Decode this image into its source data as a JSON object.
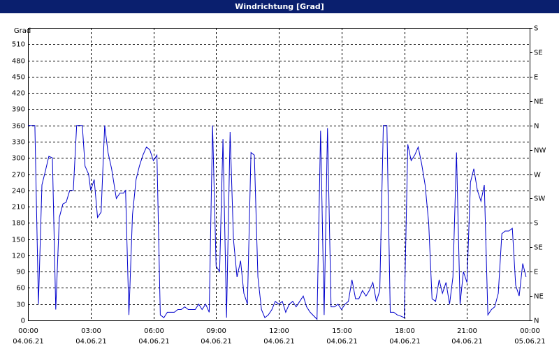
{
  "chart_data": {
    "type": "line",
    "title": "Windrichtung [Grad]",
    "y_label": "Grad",
    "x": [
      0,
      0.33,
      0.5,
      0.67,
      0.83,
      1,
      1.17,
      1.33,
      1.5,
      1.67,
      1.83,
      2,
      2.17,
      2.33,
      2.6,
      2.73,
      2.9,
      3,
      3.17,
      3.33,
      3.5,
      3.67,
      3.83,
      4,
      4.23,
      4.4,
      4.57,
      4.67,
      4.83,
      5,
      5.17,
      5.33,
      5.5,
      5.67,
      5.83,
      6,
      6.17,
      6.33,
      6.5,
      6.67,
      6.83,
      7,
      7.17,
      7.33,
      7.5,
      7.67,
      7.83,
      8,
      8.17,
      8.33,
      8.5,
      8.67,
      8.83,
      9,
      9.17,
      9.33,
      9.5,
      9.67,
      9.83,
      10,
      10.17,
      10.33,
      10.5,
      10.67,
      10.83,
      11,
      11.17,
      11.33,
      11.5,
      11.67,
      11.83,
      12,
      12.17,
      12.33,
      12.5,
      12.67,
      12.83,
      13,
      13.17,
      13.33,
      13.5,
      13.83,
      14,
      14.17,
      14.33,
      14.5,
      14.67,
      14.83,
      15,
      15.17,
      15.33,
      15.5,
      15.67,
      15.83,
      16,
      16.17,
      16.33,
      16.5,
      16.67,
      16.83,
      17,
      17.17,
      17.33,
      17.5,
      17.67,
      17.83,
      18,
      18.17,
      18.33,
      18.5,
      18.67,
      18.83,
      19,
      19.17,
      19.33,
      19.5,
      19.67,
      19.83,
      20,
      20.17,
      20.33,
      20.5,
      20.67,
      20.83,
      21,
      21.17,
      21.33,
      21.5,
      21.67,
      21.83,
      22,
      22.17,
      22.33,
      22.5,
      22.67,
      22.83,
      23,
      23.17,
      23.33,
      23.5,
      23.67,
      23.83
    ],
    "values": [
      360,
      360,
      30,
      250,
      275,
      303,
      300,
      20,
      190,
      215,
      218,
      240,
      240,
      360,
      360,
      285,
      270,
      240,
      260,
      190,
      200,
      360,
      310,
      280,
      225,
      235,
      235,
      240,
      10,
      195,
      260,
      285,
      305,
      320,
      315,
      295,
      305,
      10,
      5,
      15,
      15,
      15,
      20,
      20,
      25,
      20,
      20,
      20,
      30,
      20,
      30,
      15,
      360,
      100,
      90,
      335,
      5,
      348,
      150,
      80,
      110,
      50,
      30,
      310,
      305,
      80,
      20,
      5,
      10,
      20,
      35,
      30,
      35,
      15,
      30,
      35,
      25,
      35,
      45,
      25,
      15,
      2,
      350,
      10,
      355,
      25,
      25,
      30,
      20,
      30,
      35,
      75,
      40,
      40,
      55,
      45,
      55,
      70,
      35,
      55,
      360,
      360,
      15,
      15,
      10,
      8,
      5,
      325,
      295,
      305,
      320,
      290,
      250,
      180,
      40,
      35,
      75,
      50,
      70,
      30,
      80,
      310,
      30,
      90,
      70,
      255,
      280,
      240,
      220,
      250,
      10,
      20,
      25,
      50,
      160,
      165,
      165,
      170,
      65,
      45,
      105,
      80
    ],
    "color": "#0000cc",
    "xlim": [
      0,
      24
    ],
    "xticks": [
      {
        "value": 0,
        "label": "00:00"
      },
      {
        "value": 3,
        "label": "03:00"
      },
      {
        "value": 6,
        "label": "06:00"
      },
      {
        "value": 9,
        "label": "09:00"
      },
      {
        "value": 12,
        "label": "12:00"
      },
      {
        "value": 15,
        "label": "15:00"
      },
      {
        "value": 18,
        "label": "18:00"
      },
      {
        "value": 21,
        "label": "21:00"
      },
      {
        "value": 24,
        "label": "00:00"
      }
    ],
    "xtick_dates": [
      "04.06.21",
      "04.06.21",
      "04.06.21",
      "04.06.21",
      "04.06.21",
      "04.06.21",
      "04.06.21",
      "04.06.21",
      "05.06.21"
    ],
    "ylim": [
      0,
      540
    ],
    "yticks": [
      0,
      30,
      60,
      90,
      120,
      150,
      180,
      210,
      240,
      270,
      300,
      330,
      360,
      390,
      420,
      450,
      480,
      510
    ],
    "y2lim": [
      0,
      540
    ],
    "y2ticks": [
      {
        "value": 0,
        "label": "N"
      },
      {
        "value": 45,
        "label": "NE"
      },
      {
        "value": 90,
        "label": "E"
      },
      {
        "value": 135,
        "label": "SE"
      },
      {
        "value": 180,
        "label": "S"
      },
      {
        "value": 225,
        "label": "SW"
      },
      {
        "value": 270,
        "label": "W"
      },
      {
        "value": 315,
        "label": "NW"
      },
      {
        "value": 360,
        "label": "N"
      },
      {
        "value": 405,
        "label": "NE"
      },
      {
        "value": 450,
        "label": "E"
      },
      {
        "value": 495,
        "label": "SE"
      },
      {
        "value": 540,
        "label": "S"
      }
    ],
    "grid": true
  }
}
